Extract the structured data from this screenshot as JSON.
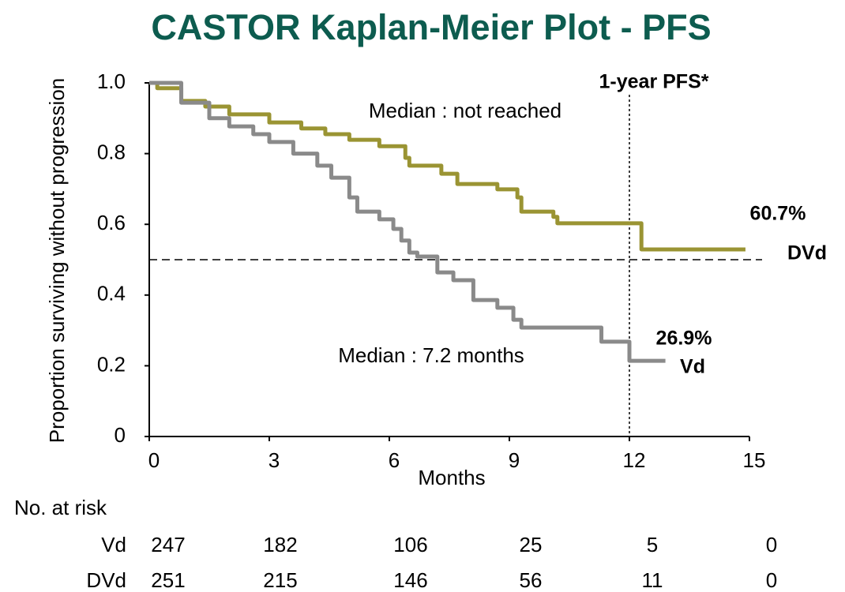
{
  "chart_data": {
    "type": "step",
    "title": "CASTOR Kaplan-Meier Plot - PFS",
    "x_label": "Months",
    "y_label": "Proportion surviving without progression",
    "xlim": [
      0,
      15
    ],
    "xticks": [
      0,
      3,
      6,
      9,
      12,
      15
    ],
    "ylim": [
      0,
      1
    ],
    "yticks": [
      0,
      0.2,
      0.4,
      0.6,
      0.8,
      {
        "value": 1,
        "label": "1.0"
      }
    ],
    "hline": 0.5,
    "vline": 12,
    "series": [
      {
        "name": "DVd",
        "color": "#9a9433",
        "x": [
          0,
          0.2,
          0.8,
          1.4,
          2.0,
          3.0,
          3.8,
          4.4,
          5.0,
          5.75,
          6.4,
          6.5,
          7.3,
          7.7,
          8.7,
          9.2,
          9.3,
          10.1,
          10.2,
          12.3,
          14.9
        ],
        "values": [
          1.0,
          0.985,
          0.949,
          0.933,
          0.911,
          0.888,
          0.871,
          0.855,
          0.839,
          0.821,
          0.788,
          0.766,
          0.743,
          0.714,
          0.699,
          0.676,
          0.636,
          0.621,
          0.603,
          0.529,
          0.529
        ]
      },
      {
        "name": "Vd",
        "color": "#8a8a8a",
        "x": [
          0,
          0.8,
          1.5,
          2.0,
          2.6,
          3.0,
          3.6,
          4.2,
          4.55,
          5.0,
          5.2,
          5.75,
          6.1,
          6.3,
          6.5,
          6.7,
          7.2,
          7.6,
          8.1,
          8.7,
          9.1,
          9.3,
          11.3,
          12.0,
          12.9
        ],
        "values": [
          1.0,
          0.944,
          0.9,
          0.877,
          0.855,
          0.833,
          0.8,
          0.766,
          0.732,
          0.676,
          0.636,
          0.614,
          0.587,
          0.554,
          0.52,
          0.509,
          0.464,
          0.442,
          0.386,
          0.364,
          0.33,
          0.308,
          0.268,
          0.214,
          0.214
        ]
      }
    ],
    "annotations": [
      "1-year PFS*",
      "Median : not reached",
      "60.7%",
      "DVd",
      "26.9%",
      "Vd",
      "Median : 7.2 months"
    ],
    "risk_table": {
      "title": "No. at risk",
      "rows": [
        {
          "name": "Vd",
          "values": [
            "247",
            "182",
            "106",
            "25",
            "5",
            "0"
          ]
        },
        {
          "name": "DVd",
          "values": [
            "251",
            "215",
            "146",
            "56",
            "11",
            "0"
          ]
        }
      ]
    }
  }
}
